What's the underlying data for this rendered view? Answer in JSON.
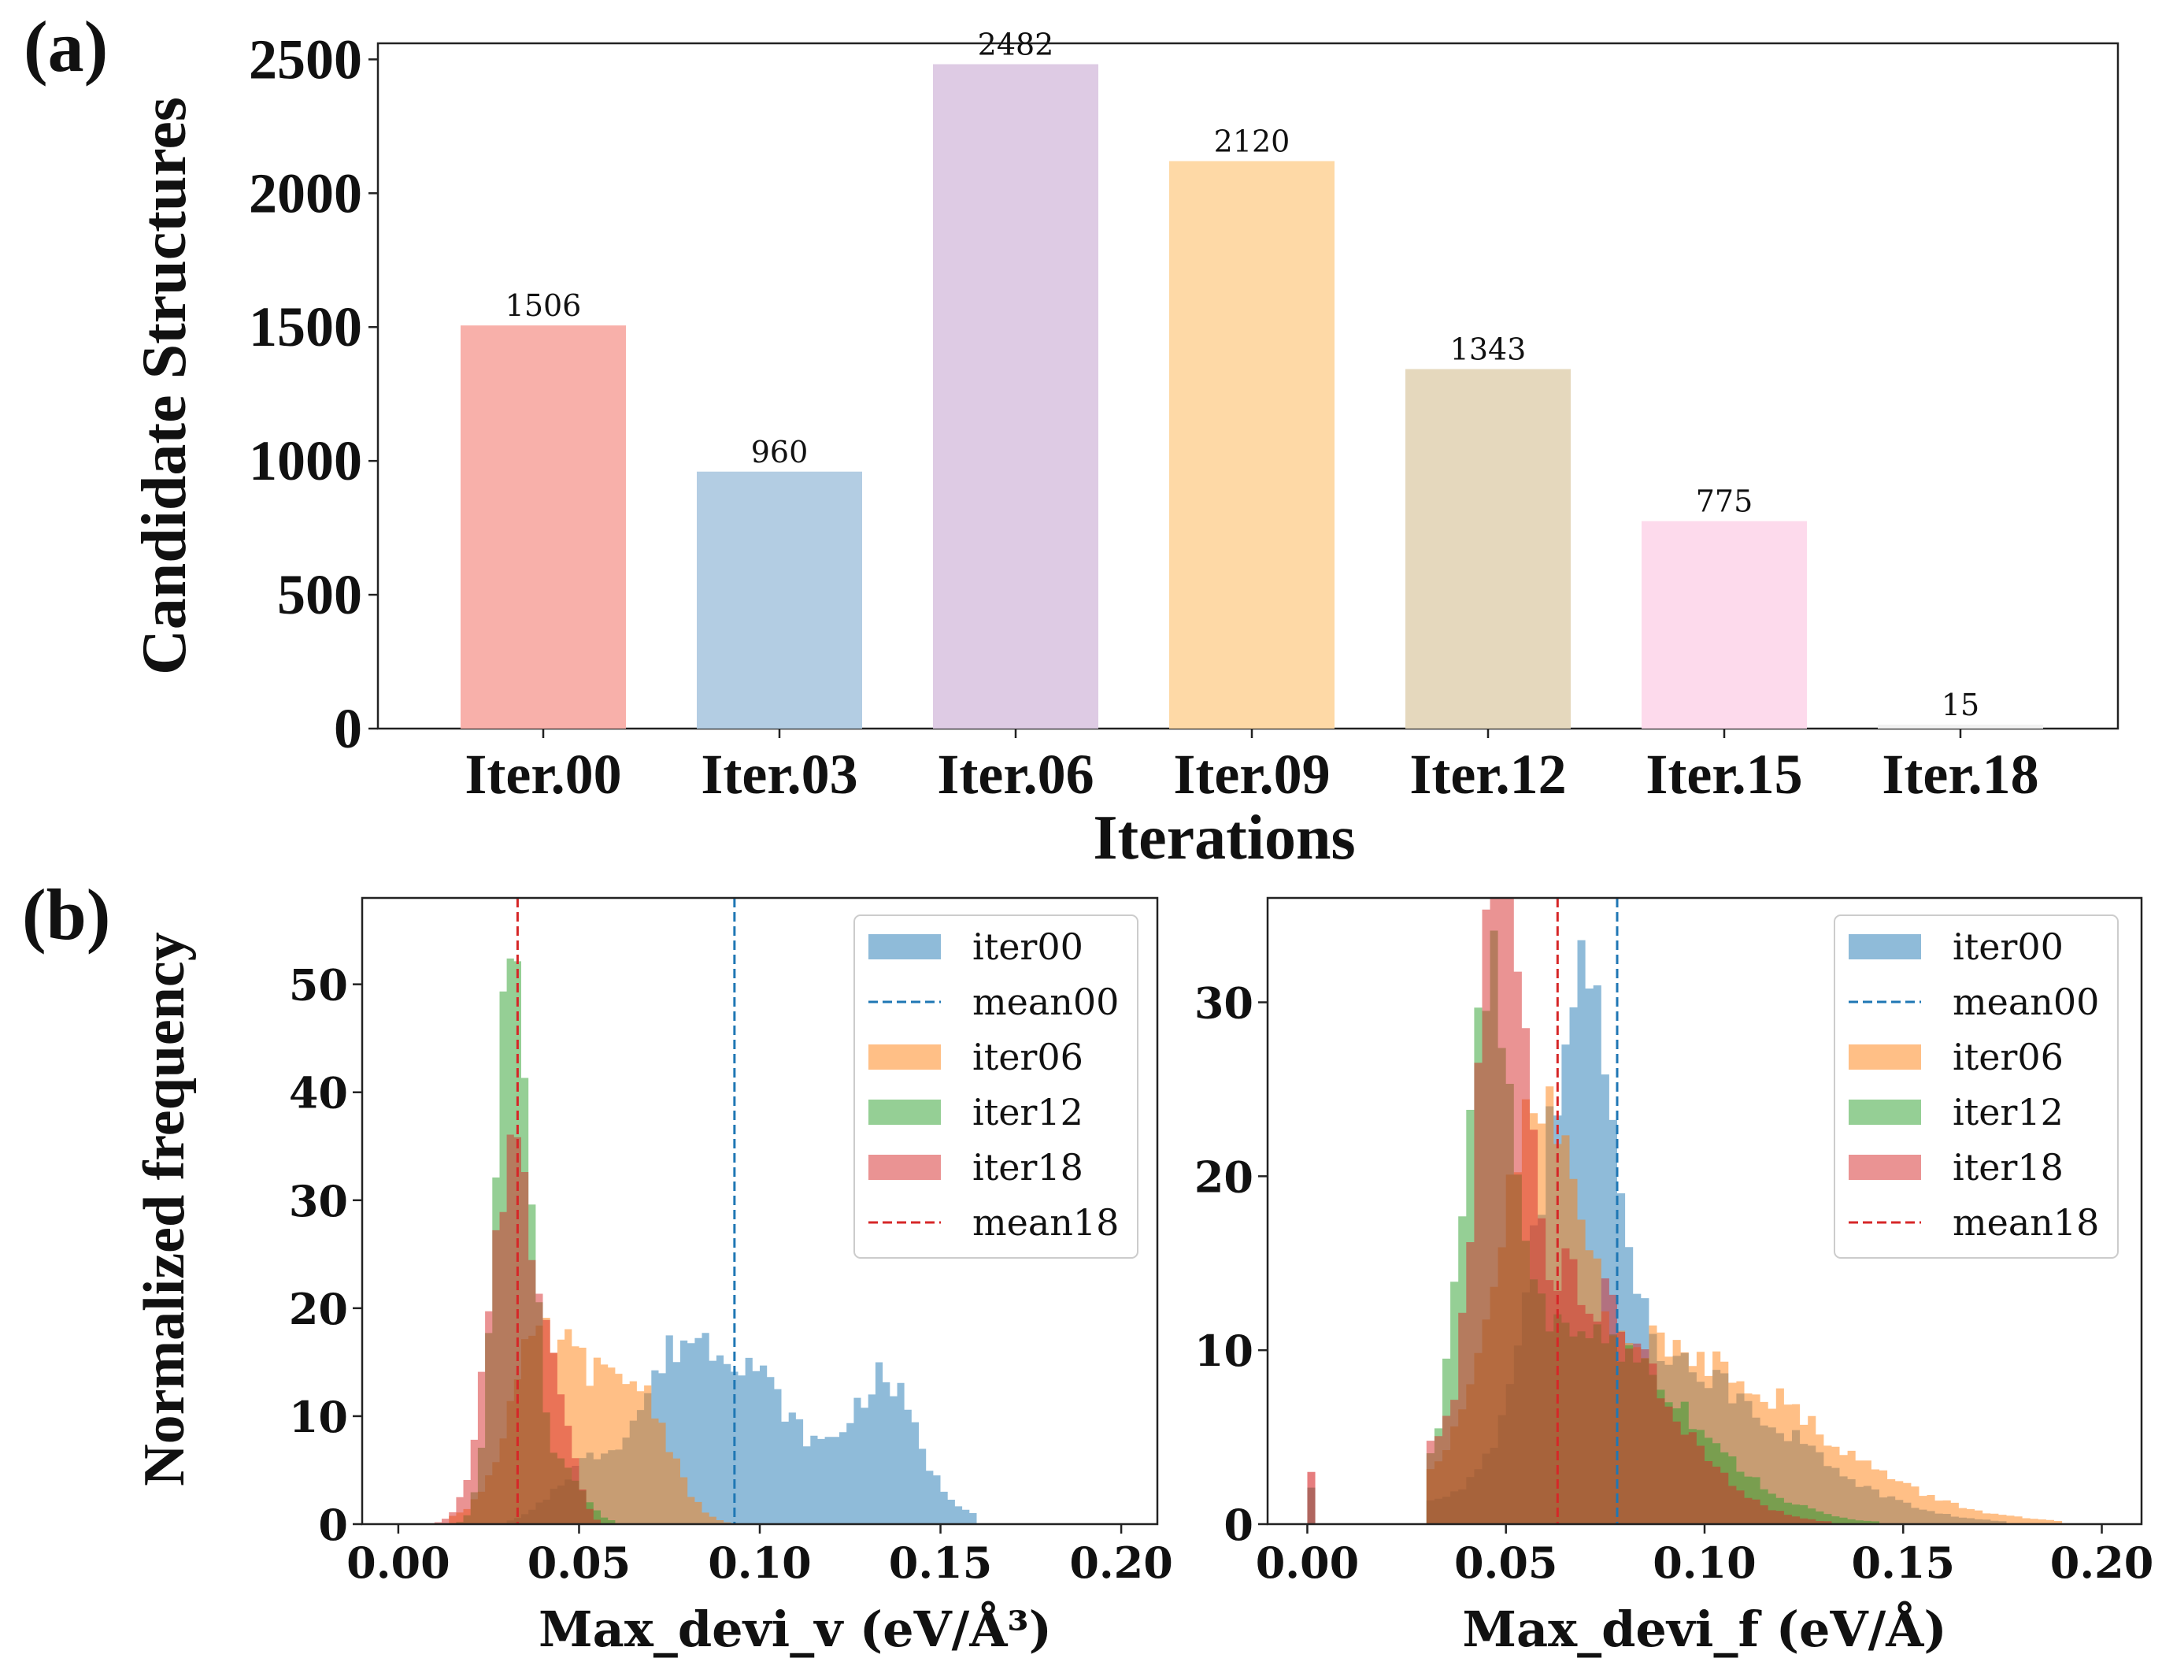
{
  "panel_labels": {
    "a": "(a)",
    "b": "(b)"
  },
  "chart_data": [
    {
      "type": "bar",
      "title": "",
      "xlabel": "Iterations",
      "ylabel": "Candidate Structures",
      "categories": [
        "Iter.00",
        "Iter.03",
        "Iter.06",
        "Iter.09",
        "Iter.12",
        "Iter.15",
        "Iter.18"
      ],
      "values": [
        1506,
        960,
        2482,
        2120,
        1343,
        775,
        15
      ],
      "value_labels": [
        "1506",
        "960",
        "2482",
        "2120",
        "1343",
        "775",
        "15"
      ],
      "colors": [
        "#f8b0aa",
        "#b3cde3",
        "#decbe4",
        "#fed9a6",
        "#e5d8bd",
        "#fddaec",
        "#f2f2f2"
      ],
      "ylim": [
        0,
        2560
      ],
      "yticks": [
        0,
        500,
        1000,
        1500,
        2000,
        2500
      ],
      "ytick_labels": [
        "0",
        "500",
        "1000",
        "1500",
        "2000",
        "2500"
      ],
      "grid": false
    },
    {
      "type": "histogram",
      "xlabel": "Max_devi_v (eV/Å³)",
      "ylabel": "Normalized frequency",
      "xlim": [
        -0.01,
        0.21
      ],
      "ylim": [
        0,
        58
      ],
      "xticks": [
        0.0,
        0.05,
        0.1,
        0.15,
        0.2
      ],
      "xtick_labels": [
        "0.00",
        "0.05",
        "0.10",
        "0.15",
        "0.20"
      ],
      "yticks": [
        0,
        10,
        20,
        30,
        40,
        50
      ],
      "ytick_labels": [
        "0",
        "10",
        "20",
        "30",
        "40",
        "50"
      ],
      "legend_position": "top-right",
      "series": [
        {
          "name": "iter00",
          "color": "#1f77b4",
          "peaks": [
            [
              0.052,
              0.009,
              5
            ],
            [
              0.078,
              0.011,
              15
            ],
            [
              0.098,
              0.009,
              8
            ],
            [
              0.135,
              0.008,
              9
            ],
            [
              0.118,
              0.022,
              6
            ]
          ],
          "range": [
            0.03,
            0.16
          ]
        },
        {
          "name": "iter06",
          "color": "#ff7f0e",
          "peaks": [
            [
              0.045,
              0.012,
              16
            ],
            [
              0.068,
              0.008,
              10
            ],
            [
              0.035,
              0.005,
              4
            ]
          ],
          "range": [
            0.015,
            0.1
          ]
        },
        {
          "name": "iter12",
          "color": "#2ca02c",
          "peaks": [
            [
              0.032,
              0.0045,
              55
            ],
            [
              0.045,
              0.006,
              5
            ]
          ],
          "range": [
            0.012,
            0.06
          ]
        },
        {
          "name": "iter18",
          "color": "#d62728",
          "peaks": [
            [
              0.032,
              0.0065,
              34
            ],
            [
              0.045,
              0.004,
              8
            ]
          ],
          "range": [
            0.006,
            0.06
          ]
        }
      ],
      "mean_lines": [
        {
          "name": "mean00",
          "x": 0.093,
          "color": "#1f77b4"
        },
        {
          "name": "mean18",
          "x": 0.033,
          "color": "#d62728"
        }
      ],
      "legend": [
        "iter00",
        "mean00",
        "iter06",
        "iter12",
        "iter18",
        "mean18"
      ]
    },
    {
      "type": "histogram",
      "xlabel": "Max_devi_f (eV/Å)",
      "ylabel": "",
      "xlim": [
        -0.01,
        0.21
      ],
      "ylim": [
        0,
        36
      ],
      "xticks": [
        0.0,
        0.05,
        0.1,
        0.15,
        0.2
      ],
      "xtick_labels": [
        "0.00",
        "0.05",
        "0.10",
        "0.15",
        "0.20"
      ],
      "yticks": [
        0,
        10,
        20,
        30
      ],
      "ytick_labels": [
        "0",
        "10",
        "20",
        "30"
      ],
      "legend_position": "top-right",
      "series": [
        {
          "name": "iter00",
          "color": "#1f77b4",
          "peaks": [
            [
              0.068,
              0.009,
              24
            ],
            [
              0.09,
              0.03,
              9
            ]
          ],
          "range": [
            0.03,
            0.2
          ]
        },
        {
          "name": "iter06",
          "color": "#ff7f0e",
          "peaks": [
            [
              0.058,
              0.01,
              17
            ],
            [
              0.09,
              0.035,
              10
            ]
          ],
          "range": [
            0.03,
            0.2
          ]
        },
        {
          "name": "iter12",
          "color": "#2ca02c",
          "peaks": [
            [
              0.046,
              0.006,
              25
            ],
            [
              0.07,
              0.025,
              11
            ]
          ],
          "range": [
            0.03,
            0.2
          ]
        },
        {
          "name": "iter18",
          "color": "#d62728",
          "peaks": [
            [
              0.049,
              0.005,
              33
            ],
            [
              0.065,
              0.022,
              14
            ]
          ],
          "range": [
            0.03,
            0.2
          ]
        }
      ],
      "spike": {
        "x": 0.0,
        "value": 3
      },
      "mean_lines": [
        {
          "name": "mean00",
          "x": 0.078,
          "color": "#1f77b4"
        },
        {
          "name": "mean18",
          "x": 0.063,
          "color": "#d62728"
        }
      ],
      "legend": [
        "iter00",
        "mean00",
        "iter06",
        "iter12",
        "iter18",
        "mean18"
      ]
    }
  ]
}
